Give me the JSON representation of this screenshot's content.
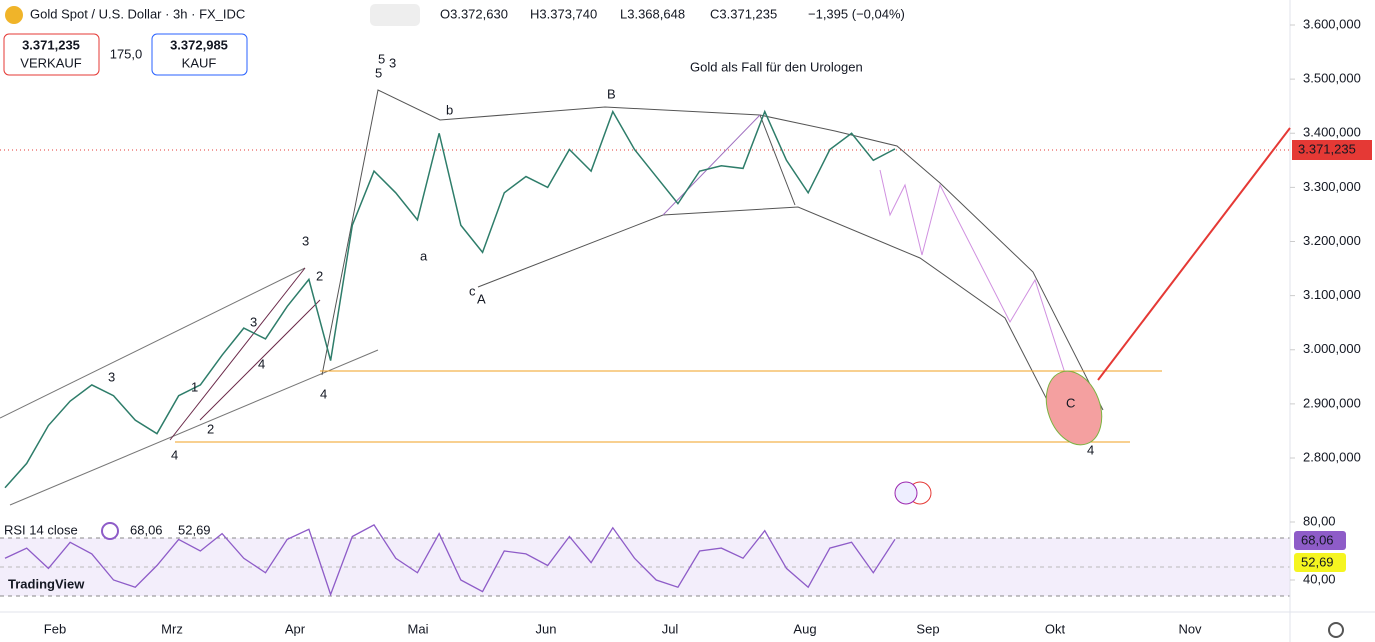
{
  "header": {
    "title": "Gold Spot / U.S. Dollar · 3h · FX_IDC",
    "open": "O3.372,630",
    "high": "H3.373,740",
    "low": "L3.368,648",
    "close": "C3.371,235",
    "change": "−1,395 (−0,04%)"
  },
  "trade": {
    "sell_price": "3.371,235",
    "sell_label": "VERKAUF",
    "spread": "175,0",
    "buy_price": "3.372,985",
    "buy_label": "KAUF"
  },
  "annotation": "Gold als Fall für den Urologen",
  "current_price_label": "3.371,235",
  "wave_labels": [
    "5",
    "3",
    "5",
    "b",
    "a",
    "c",
    "A",
    "B",
    "C",
    "4",
    "3",
    "4",
    "2",
    "1",
    "3",
    "4",
    "3",
    "2",
    "4"
  ],
  "price_axis": {
    "ylim": [
      2725,
      3640
    ],
    "yticks": [
      {
        "value": 3600,
        "label": "3.600,000"
      },
      {
        "value": 3500,
        "label": "3.500,000"
      },
      {
        "value": 3400,
        "label": "3.400,000"
      },
      {
        "value": 3300,
        "label": "3.300,000"
      },
      {
        "value": 3200,
        "label": "3.200,000"
      },
      {
        "value": 3100,
        "label": "3.100,000"
      },
      {
        "value": 3000,
        "label": "3.000,000"
      },
      {
        "value": 2900,
        "label": "2.900,000"
      },
      {
        "value": 2800,
        "label": "2.800,000"
      }
    ]
  },
  "price_series": {
    "values": [
      2745,
      2790,
      2860,
      2905,
      2935,
      2915,
      2870,
      2845,
      2915,
      2935,
      2990,
      3040,
      3020,
      3080,
      3130,
      2980,
      3230,
      3330,
      3290,
      3240,
      3400,
      3230,
      3180,
      3290,
      3320,
      3300,
      3370,
      3330,
      3440,
      3370,
      3320,
      3270,
      3330,
      3340,
      3335,
      3440,
      3350,
      3290,
      3370,
      3400,
      3350,
      3371
    ]
  },
  "time_axis": [
    "Feb",
    "Mrz",
    "Apr",
    "Mai",
    "Jun",
    "Jul",
    "Aug",
    "Sep",
    "Okt",
    "Nov"
  ],
  "rsi": {
    "title": "RSI 14 close",
    "value_label": "68,06",
    "ma_label": "52,69",
    "ylim": [
      20,
      83
    ],
    "yticks": [
      {
        "value": 80,
        "label": "80,00"
      },
      {
        "value": 40,
        "label": "40,00"
      }
    ],
    "values": [
      55,
      62,
      48,
      66,
      58,
      40,
      35,
      50,
      68,
      60,
      72,
      55,
      45,
      68,
      75,
      30,
      70,
      78,
      55,
      45,
      72,
      40,
      32,
      60,
      58,
      50,
      70,
      52,
      76,
      55,
      40,
      35,
      60,
      62,
      55,
      74,
      48,
      35,
      62,
      66,
      45,
      68.06
    ]
  },
  "logo": "TradingView"
}
